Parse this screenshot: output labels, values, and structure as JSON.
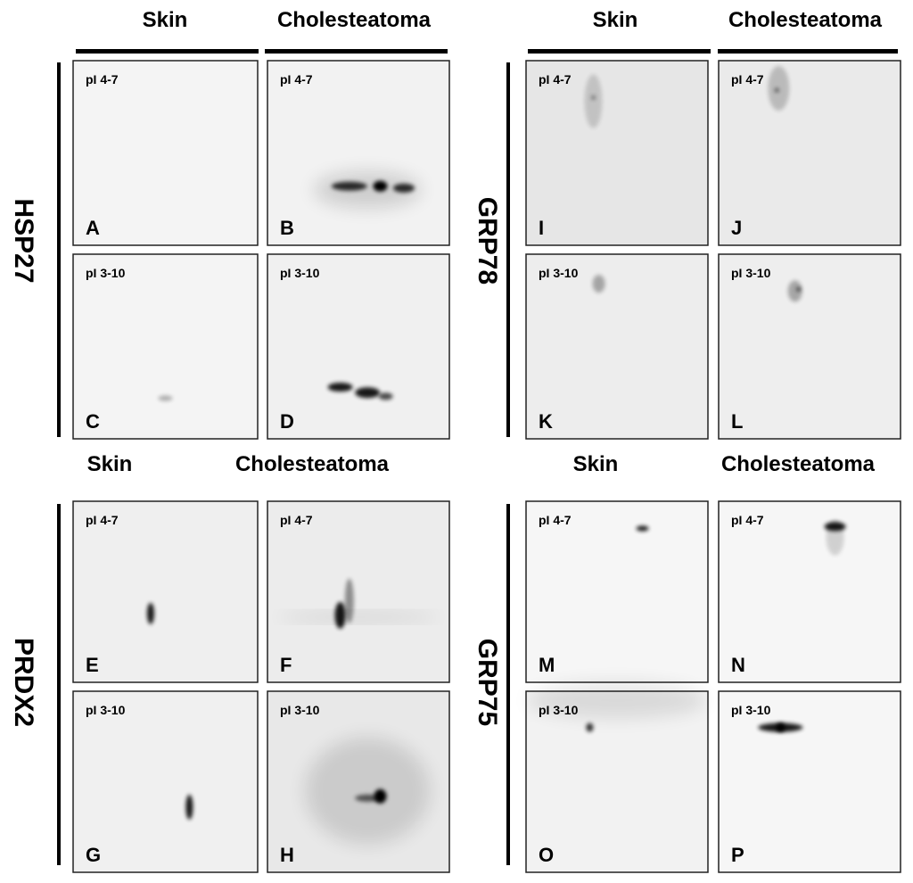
{
  "quadrants": [
    {
      "protein": "HSP27",
      "columns": [
        "Skin",
        "Cholesteatoma"
      ],
      "panels": [
        {
          "letter": "A",
          "range": "pI 4-7"
        },
        {
          "letter": "B",
          "range": "pI 4-7"
        },
        {
          "letter": "C",
          "range": "pI 3-10"
        },
        {
          "letter": "D",
          "range": "pI 3-10"
        }
      ]
    },
    {
      "protein": "GRP78",
      "columns": [
        "Skin",
        "Cholesteatoma"
      ],
      "panels": [
        {
          "letter": "I",
          "range": "pI 4-7"
        },
        {
          "letter": "J",
          "range": "pI 4-7"
        },
        {
          "letter": "K",
          "range": "pI 3-10"
        },
        {
          "letter": "L",
          "range": "pI 3-10"
        }
      ]
    },
    {
      "protein": "PRDX2",
      "columns": [
        "Skin",
        "Cholesteatoma"
      ],
      "panels": [
        {
          "letter": "E",
          "range": "pI 4-7"
        },
        {
          "letter": "F",
          "range": "pI 4-7"
        },
        {
          "letter": "G",
          "range": "pI 3-10"
        },
        {
          "letter": "H",
          "range": "pI 3-10"
        }
      ]
    },
    {
      "protein": "GRP75",
      "columns": [
        "Skin",
        "Cholesteatoma"
      ],
      "panels": [
        {
          "letter": "M",
          "range": "pI 4-7"
        },
        {
          "letter": "N",
          "range": "pI 4-7"
        },
        {
          "letter": "O",
          "range": "pI 3-10"
        },
        {
          "letter": "P",
          "range": "pI 3-10"
        }
      ]
    }
  ]
}
